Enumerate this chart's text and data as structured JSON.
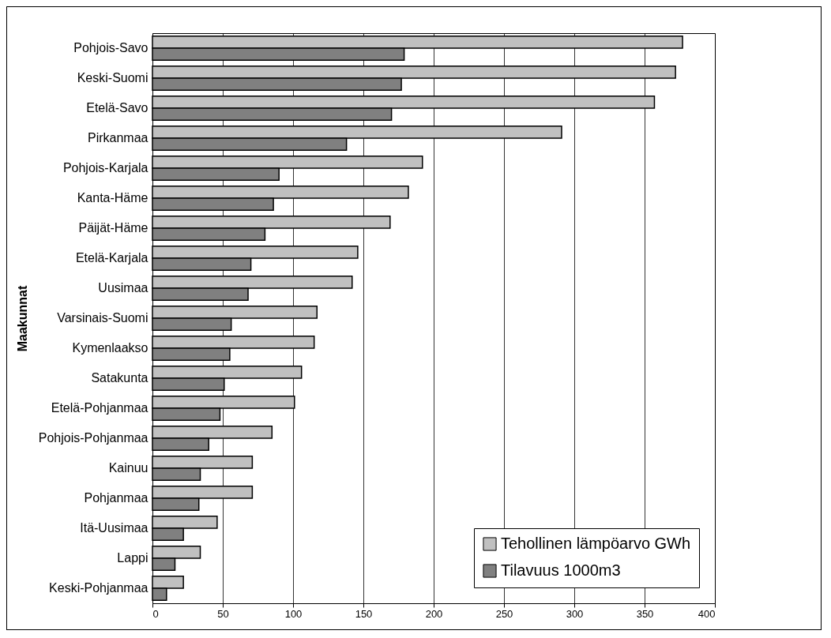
{
  "chart_data": {
    "type": "bar",
    "orientation": "horizontal",
    "ylabel": "Maakunnat",
    "categories": [
      "Pohjois-Savo",
      "Keski-Suomi",
      "Etelä-Savo",
      "Pirkanmaa",
      "Pohjois-Karjala",
      "Kanta-Häme",
      "Päijät-Häme",
      "Etelä-Karjala",
      "Uusimaa",
      "Varsinais-Suomi",
      "Kymenlaakso",
      "Satakunta",
      "Etelä-Pohjanmaa",
      "Pohjois-Pohjanmaa",
      "Kainuu",
      "Pohjanmaa",
      "Itä-Uusimaa",
      "Lappi",
      "Keski-Pohjanmaa"
    ],
    "series": [
      {
        "name": "Tehollinen lämpöarvo GWh",
        "color": "#c0c0c0",
        "values": [
          377,
          372,
          357,
          291,
          192,
          182,
          169,
          146,
          142,
          117,
          115,
          106,
          101,
          85,
          71,
          71,
          46,
          34,
          22
        ]
      },
      {
        "name": "Tilavuus 1000m3",
        "color": "#808080",
        "values": [
          179,
          177,
          170,
          138,
          90,
          86,
          80,
          70,
          68,
          56,
          55,
          51,
          48,
          40,
          34,
          33,
          22,
          16,
          10
        ]
      }
    ],
    "xlim": [
      0,
      400
    ],
    "xticks": [
      0,
      50,
      100,
      150,
      200,
      250,
      300,
      350,
      400
    ],
    "grid": "x",
    "legend": "bottom right"
  }
}
